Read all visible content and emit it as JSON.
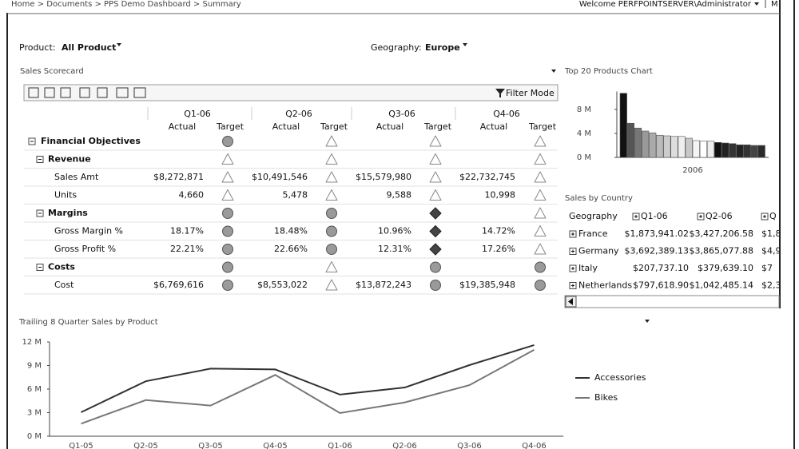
{
  "breadcrumb": "Home > Documents > PPS Demo Dashboard > Summary",
  "welcome": "Welcome PERFPOINTSERVER\\Administrator",
  "menu": "M",
  "filters": [
    {
      "label": "Product:",
      "value": "All Product"
    },
    {
      "label": "Geography:",
      "value": "Europe"
    }
  ],
  "scorecard": {
    "title": "Sales Scorecard",
    "filter_mode": "Filter Mode",
    "quarters": [
      "Q1-06",
      "Q2-06",
      "Q3-06",
      "Q4-06"
    ],
    "actual_label": "Actual",
    "target_label": "Target",
    "rows": [
      {
        "label": "Financial Objectives",
        "level": 0,
        "cells": [
          {
            "target": "circle"
          },
          {
            "target": "triangle"
          },
          {
            "target": "triangle"
          },
          {
            "target": "triangle"
          }
        ]
      },
      {
        "label": "Revenue",
        "level": 1,
        "cells": [
          {
            "target": "triangle"
          },
          {
            "target": "triangle"
          },
          {
            "target": "triangle"
          },
          {
            "target": "triangle"
          }
        ]
      },
      {
        "label": "Sales Amt",
        "level": 2,
        "cells": [
          {
            "actual": "$8,272,871",
            "target": "triangle"
          },
          {
            "actual": "$10,491,546",
            "target": "triangle"
          },
          {
            "actual": "$15,579,980",
            "target": "triangle"
          },
          {
            "actual": "$22,732,745",
            "target": "triangle"
          }
        ]
      },
      {
        "label": "Units",
        "level": 2,
        "cells": [
          {
            "actual": "4,660",
            "target": "triangle"
          },
          {
            "actual": "5,478",
            "target": "triangle"
          },
          {
            "actual": "9,588",
            "target": "triangle"
          },
          {
            "actual": "10,998",
            "target": "triangle"
          }
        ]
      },
      {
        "label": "Margins",
        "level": 1,
        "cells": [
          {
            "target": "circle"
          },
          {
            "target": "circle"
          },
          {
            "target": "diamond"
          },
          {
            "target": "triangle"
          }
        ]
      },
      {
        "label": "Gross Margin %",
        "level": 2,
        "cells": [
          {
            "actual": "18.17%",
            "target": "circle"
          },
          {
            "actual": "18.48%",
            "target": "circle"
          },
          {
            "actual": "10.96%",
            "target": "diamond"
          },
          {
            "actual": "14.72%",
            "target": "triangle"
          }
        ]
      },
      {
        "label": "Gross Profit %",
        "level": 2,
        "cells": [
          {
            "actual": "22.21%",
            "target": "circle"
          },
          {
            "actual": "22.66%",
            "target": "circle"
          },
          {
            "actual": "12.31%",
            "target": "diamond"
          },
          {
            "actual": "17.26%",
            "target": "triangle"
          }
        ]
      },
      {
        "label": "Costs",
        "level": 1,
        "cells": [
          {
            "target": "circle"
          },
          {
            "target": "triangle"
          },
          {
            "target": "circle"
          },
          {
            "target": "circle"
          }
        ]
      },
      {
        "label": "Cost",
        "level": 2,
        "cells": [
          {
            "actual": "$6,769,616",
            "target": "circle"
          },
          {
            "actual": "$8,553,022",
            "target": "triangle"
          },
          {
            "actual": "$13,872,243",
            "target": "circle"
          },
          {
            "actual": "$19,385,948",
            "target": "circle"
          }
        ]
      }
    ]
  },
  "sales_by_country": {
    "title": "Sales by Country",
    "columns": [
      "Geography",
      "Q1-06",
      "Q2-06",
      "Q"
    ],
    "rows": [
      [
        "France",
        "$1,873,941.02",
        "$3,427,206.58",
        "$1,8"
      ],
      [
        "Germany",
        "$3,692,389.13",
        "$3,865,077.88",
        "$4,9"
      ],
      [
        "Italy",
        "$207,737.10",
        "$379,639.10",
        "$7"
      ],
      [
        "Netherlands",
        "$797,618.90",
        "$1,042,485.14",
        "$2,3"
      ]
    ]
  },
  "chart_data": [
    {
      "type": "bar",
      "title": "Top 20 Products Chart",
      "categories": [
        "2006"
      ],
      "series": [
        {
          "color": "#111111",
          "values": [
            10.7
          ]
        },
        {
          "color": "#555555",
          "values": [
            5.7
          ]
        },
        {
          "color": "#777777",
          "values": [
            4.9
          ]
        },
        {
          "color": "#999999",
          "values": [
            4.4
          ]
        },
        {
          "color": "#aaaaaa",
          "values": [
            4.1
          ]
        },
        {
          "color": "#bbbbbb",
          "values": [
            3.7
          ]
        },
        {
          "color": "#cccccc",
          "values": [
            3.6
          ]
        },
        {
          "color": "#dddddd",
          "values": [
            3.5
          ]
        },
        {
          "color": "#eeeeee",
          "values": [
            3.5
          ]
        },
        {
          "color": "#c8c8c8",
          "values": [
            3.2
          ]
        },
        {
          "color": "#f4f4f4",
          "values": [
            2.8
          ]
        },
        {
          "color": "#ffffff",
          "values": [
            2.7
          ]
        },
        {
          "color": "#eeeeee",
          "values": [
            2.7
          ]
        },
        {
          "color": "#111111",
          "values": [
            2.5
          ]
        },
        {
          "color": "#222222",
          "values": [
            2.4
          ]
        },
        {
          "color": "#333333",
          "values": [
            2.3
          ]
        },
        {
          "color": "#222222",
          "values": [
            2.1
          ]
        },
        {
          "color": "#333333",
          "values": [
            2.1
          ]
        },
        {
          "color": "#444444",
          "values": [
            2.0
          ]
        },
        {
          "color": "#2a2a2a",
          "values": [
            2.0
          ]
        }
      ],
      "ylim": [
        0,
        11
      ],
      "yticks": [
        {
          "value": 0,
          "label": "0 M"
        },
        {
          "value": 4,
          "label": "4 M"
        },
        {
          "value": 8,
          "label": "8 M"
        }
      ]
    },
    {
      "type": "line",
      "title": "Trailing 8 Quarter Sales by Product",
      "categories": [
        "Q1-05",
        "Q2-05",
        "Q3-05",
        "Q4-05",
        "Q1-06",
        "Q2-06",
        "Q3-06",
        "Q4-06"
      ],
      "series": [
        {
          "name": "Accessories",
          "color": "#333333",
          "values": [
            3.05,
            7.0,
            8.6,
            8.5,
            5.3,
            6.2,
            9.05,
            11.6
          ]
        },
        {
          "name": "Bikes",
          "color": "#777777",
          "values": [
            1.6,
            4.6,
            3.9,
            7.8,
            2.95,
            4.3,
            6.5,
            11.0
          ]
        }
      ],
      "ylim": [
        0,
        12
      ],
      "yticks": [
        {
          "value": 0,
          "label": "0 M"
        },
        {
          "value": 3,
          "label": "3 M"
        },
        {
          "value": 6,
          "label": "6 M"
        },
        {
          "value": 9,
          "label": "9 M"
        },
        {
          "value": 12,
          "label": "12 M"
        }
      ],
      "legend": "right"
    }
  ]
}
